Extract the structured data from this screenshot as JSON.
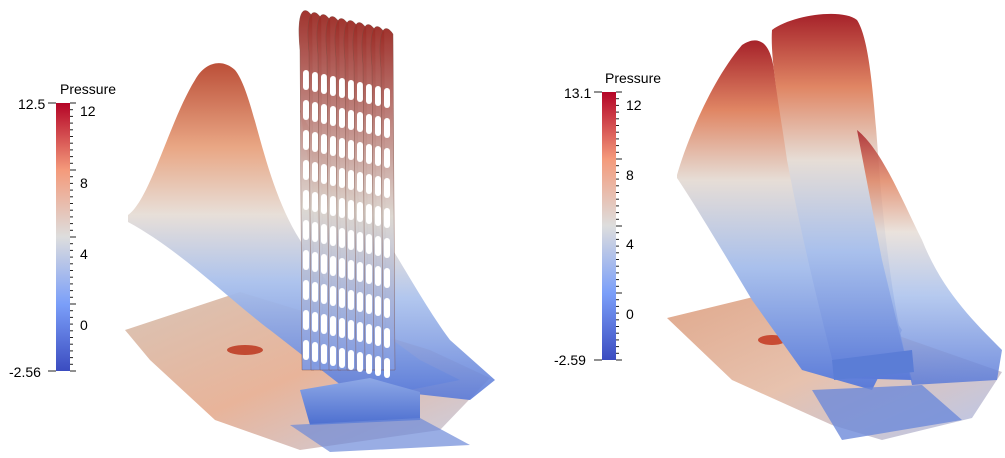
{
  "colormap": {
    "low": "#3b4cc0",
    "mid": "#dddddd",
    "high": "#b40426"
  },
  "panels": [
    {
      "id": "left",
      "colorbar": {
        "title": "Pressure",
        "range_min_label": "-2.56",
        "range_max_label": "12.5",
        "range": [
          -2.56,
          12.5
        ],
        "ticks": [
          "12",
          "8",
          "4",
          "0"
        ]
      }
    },
    {
      "id": "right",
      "colorbar": {
        "title": "Pressure",
        "range_min_label": "-2.59",
        "range_max_label": "13.1",
        "range": [
          -2.59,
          13.1
        ],
        "ticks": [
          "12",
          "8",
          "4",
          "0"
        ]
      }
    }
  ]
}
